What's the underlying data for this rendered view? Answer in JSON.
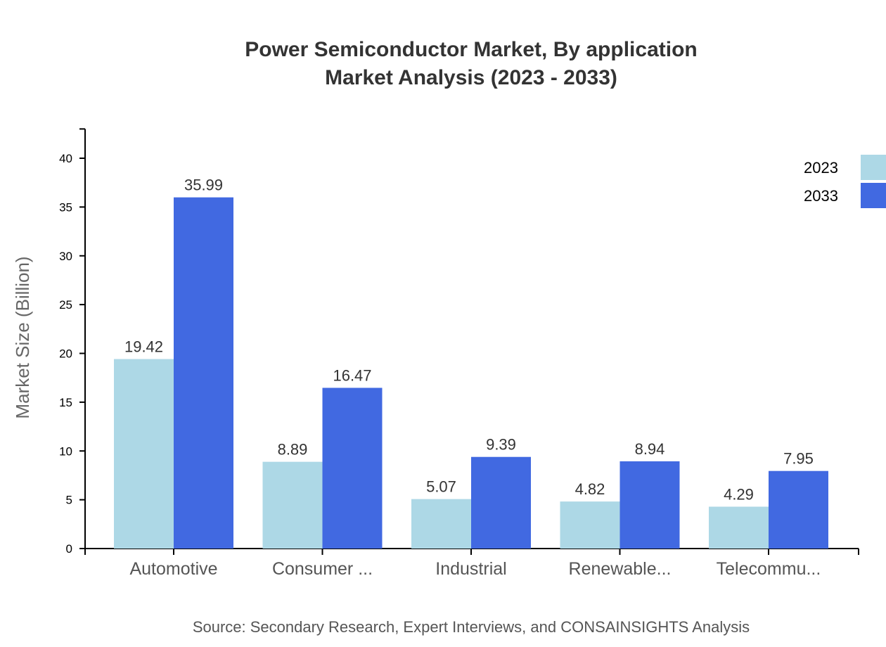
{
  "chart_data": {
    "type": "bar",
    "title": "Power Semiconductor Market, By application",
    "subtitle": "Market Analysis (2023 - 2033)",
    "xlabel": "",
    "ylabel": "Market Size (Billion)",
    "categories": [
      "Automotive",
      "Consumer ...",
      "Industrial",
      "Renewable...",
      "Telecommu..."
    ],
    "series": [
      {
        "name": "2023",
        "color": "#ADD8E6",
        "values": [
          19.42,
          8.89,
          5.07,
          4.82,
          4.29
        ]
      },
      {
        "name": "2033",
        "color": "#4169E1",
        "values": [
          35.99,
          16.47,
          9.39,
          8.94,
          7.95
        ]
      }
    ],
    "ylim": [
      0,
      43
    ],
    "yticks": [
      0,
      5,
      10,
      15,
      20,
      25,
      30,
      35,
      40
    ],
    "grid": false,
    "legend_position": "top-right",
    "source": "Source: Secondary Research, Expert Interviews, and CONSAINSIGHTS Analysis"
  }
}
